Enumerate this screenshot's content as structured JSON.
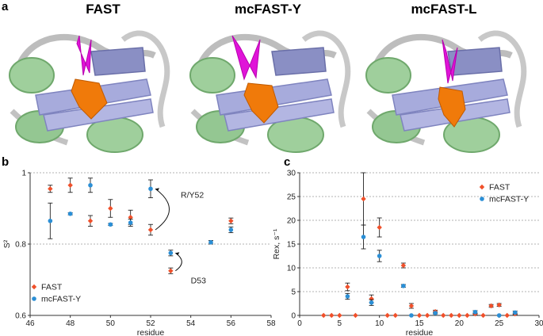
{
  "panels": {
    "a": {
      "letter": "a",
      "titles": [
        "FAST",
        "mcFAST-Y",
        "mcFAST-L"
      ]
    },
    "b": {
      "letter": "b"
    },
    "c": {
      "letter": "c"
    }
  },
  "colors": {
    "fast": "#f0502a",
    "mcfast": "#2b8fd6",
    "ligand_top": "#e014d8",
    "ligand_bottom": "#f07a0a",
    "helix": "#8fc48e",
    "sheet": "#9ea2d4",
    "loop": "#cfcfcf"
  },
  "chart_data": [
    {
      "type": "scatter",
      "panel": "b",
      "title": "",
      "xlabel": "residue",
      "ylabel": "S²",
      "xlim": [
        46,
        58
      ],
      "ylim": [
        0.6,
        1.0
      ],
      "xticks": [
        46,
        48,
        50,
        52,
        54,
        56,
        58
      ],
      "yticks": [
        0.6,
        0.8,
        1.0
      ],
      "ytick_labels": [
        "0.6",
        "0.8",
        "1"
      ],
      "grid": "horizontal dashed",
      "legend": "bottom-left",
      "series": [
        {
          "name": "FAST",
          "marker": "diamond",
          "points": [
            {
              "x": 47,
              "y": 0.955,
              "err": 0.01
            },
            {
              "x": 48,
              "y": 0.965,
              "err": 0.02
            },
            {
              "x": 49,
              "y": 0.865,
              "err": 0.015
            },
            {
              "x": 50,
              "y": 0.9,
              "err": 0.025
            },
            {
              "x": 51,
              "y": 0.875,
              "err": 0.02
            },
            {
              "x": 52,
              "y": 0.84,
              "err": 0.015
            },
            {
              "x": 53,
              "y": 0.725,
              "err": 0.008
            },
            {
              "x": 56,
              "y": 0.865,
              "err": 0.008
            }
          ]
        },
        {
          "name": "mcFAST-Y",
          "marker": "circle",
          "points": [
            {
              "x": 47,
              "y": 0.865,
              "err": 0.05
            },
            {
              "x": 48,
              "y": 0.885,
              "err": 0.003
            },
            {
              "x": 49,
              "y": 0.965,
              "err": 0.02
            },
            {
              "x": 50,
              "y": 0.855,
              "err": 0.003
            },
            {
              "x": 51,
              "y": 0.86,
              "err": 0.01
            },
            {
              "x": 52,
              "y": 0.955,
              "err": 0.025
            },
            {
              "x": 53,
              "y": 0.775,
              "err": 0.008
            },
            {
              "x": 55,
              "y": 0.805,
              "err": 0.005
            },
            {
              "x": 56,
              "y": 0.84,
              "err": 0.008
            }
          ]
        }
      ],
      "annotations": [
        {
          "text": "R/Y52",
          "from": [
            52,
            0.84
          ],
          "to": [
            52,
            0.955
          ],
          "label_at": [
            53.5,
            0.93
          ]
        },
        {
          "text": "D53",
          "from": [
            53,
            0.725
          ],
          "to": [
            53,
            0.775
          ],
          "label_at": [
            54,
            0.69
          ]
        }
      ]
    },
    {
      "type": "scatter",
      "panel": "c",
      "title": "",
      "xlabel": "residue",
      "ylabel": "Rex, s⁻¹",
      "xlim": [
        0,
        30
      ],
      "ylim": [
        0,
        30
      ],
      "xticks": [
        0,
        5,
        10,
        15,
        20,
        25,
        30
      ],
      "yticks": [
        0,
        5,
        10,
        15,
        20,
        25,
        30
      ],
      "grid": "horizontal dashed",
      "legend": "top-left",
      "series": [
        {
          "name": "FAST",
          "marker": "diamond",
          "points": [
            {
              "x": 3,
              "y": 0,
              "err": 0
            },
            {
              "x": 4,
              "y": 0,
              "err": 0
            },
            {
              "x": 5,
              "y": 0,
              "err": 0
            },
            {
              "x": 6,
              "y": 6.0,
              "err": 0.8
            },
            {
              "x": 7,
              "y": 0,
              "err": 0
            },
            {
              "x": 8,
              "y": 24.5,
              "err": 5.5
            },
            {
              "x": 9,
              "y": 3.5,
              "err": 0.8
            },
            {
              "x": 10,
              "y": 18.5,
              "err": 2.0
            },
            {
              "x": 11,
              "y": 0,
              "err": 0
            },
            {
              "x": 12,
              "y": 0,
              "err": 0
            },
            {
              "x": 13,
              "y": 10.5,
              "err": 0.5
            },
            {
              "x": 14,
              "y": 2.0,
              "err": 0.5
            },
            {
              "x": 15,
              "y": 0,
              "err": 0
            },
            {
              "x": 16,
              "y": 0,
              "err": 0
            },
            {
              "x": 17,
              "y": 0.8,
              "err": 0.3
            },
            {
              "x": 18,
              "y": 0,
              "err": 0
            },
            {
              "x": 19,
              "y": 0,
              "err": 0
            },
            {
              "x": 20,
              "y": 0,
              "err": 0
            },
            {
              "x": 21,
              "y": 0,
              "err": 0
            },
            {
              "x": 22,
              "y": 0.3,
              "err": 0.2
            },
            {
              "x": 23,
              "y": 0,
              "err": 0
            },
            {
              "x": 24,
              "y": 2.0,
              "err": 0.3
            },
            {
              "x": 25,
              "y": 2.2,
              "err": 0.3
            },
            {
              "x": 26,
              "y": 0,
              "err": 0
            },
            {
              "x": 27,
              "y": 0.3,
              "err": 0.2
            }
          ]
        },
        {
          "name": "mcFAST-Y",
          "marker": "circle",
          "points": [
            {
              "x": 6,
              "y": 4.0,
              "err": 0.6
            },
            {
              "x": 8,
              "y": 16.5,
              "err": 2.5
            },
            {
              "x": 9,
              "y": 2.7,
              "err": 0.6
            },
            {
              "x": 10,
              "y": 12.5,
              "err": 1.2
            },
            {
              "x": 13,
              "y": 6.2,
              "err": 0.3
            },
            {
              "x": 14,
              "y": 0,
              "err": 0
            },
            {
              "x": 17,
              "y": 0.5,
              "err": 0.2
            },
            {
              "x": 22,
              "y": 0.7,
              "err": 0.3
            },
            {
              "x": 25,
              "y": 0,
              "err": 0
            },
            {
              "x": 27,
              "y": 0.6,
              "err": 0.3
            }
          ]
        }
      ]
    }
  ]
}
